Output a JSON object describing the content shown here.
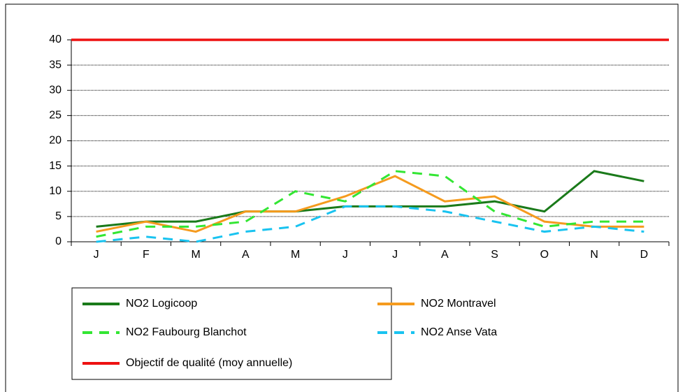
{
  "chart_data": {
    "type": "line",
    "categories": [
      "J",
      "F",
      "M",
      "A",
      "M",
      "J",
      "J",
      "A",
      "S",
      "O",
      "N",
      "D"
    ],
    "series": [
      {
        "name": "NO2 Logicoop",
        "color": "#1a7a1a",
        "style": "solid",
        "values": [
          3,
          4,
          4,
          6,
          6,
          7,
          7,
          7,
          8,
          6,
          14,
          12
        ]
      },
      {
        "name": "NO2 Montravel",
        "color": "#f59b1e",
        "style": "solid",
        "values": [
          2,
          4,
          2,
          6,
          6,
          9,
          13,
          8,
          9,
          4,
          3,
          3
        ]
      },
      {
        "name": "NO2 Faubourg Blanchot",
        "color": "#33e633",
        "style": "dashed",
        "values": [
          1,
          3,
          3,
          4,
          10,
          8,
          14,
          13,
          6,
          3,
          4,
          4
        ]
      },
      {
        "name": "NO2 Anse Vata",
        "color": "#19c3f0",
        "style": "dashed",
        "values": [
          0,
          1,
          0,
          2,
          3,
          7,
          7,
          6,
          4,
          2,
          3,
          2
        ]
      },
      {
        "name": "Objectif de qualité (moy annuelle)",
        "color": "#ee1111",
        "style": "solid",
        "values": [
          40,
          40,
          40,
          40,
          40,
          40,
          40,
          40,
          40,
          40,
          40,
          40
        ]
      }
    ],
    "ylim": [
      0,
      40
    ],
    "yticks": [
      0,
      5,
      10,
      15,
      20,
      25,
      30,
      35,
      40
    ],
    "grid": true
  }
}
